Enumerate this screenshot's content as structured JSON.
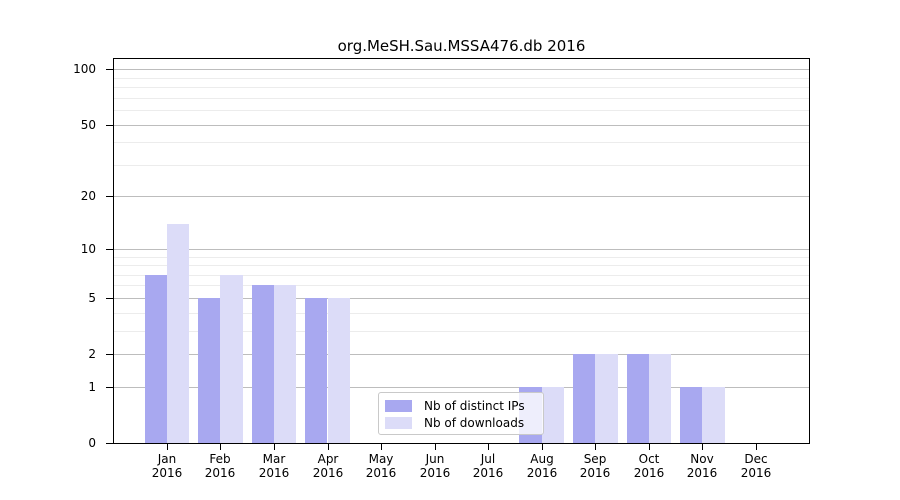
{
  "chart_data": {
    "type": "bar",
    "title": "org.MeSH.Sau.MSSA476.db 2016",
    "xlabel": "",
    "ylabel": "",
    "scale": "log1p",
    "grid": true,
    "ylim": [
      0,
      113
    ],
    "y_ticks": [
      0,
      1,
      2,
      5,
      10,
      20,
      50,
      100
    ],
    "y_minor_ticks": [
      3,
      4,
      6,
      7,
      8,
      9,
      30,
      40,
      60,
      70,
      80,
      90
    ],
    "categories": [
      {
        "label": "Jan",
        "sublabel": "2016"
      },
      {
        "label": "Feb",
        "sublabel": "2016"
      },
      {
        "label": "Mar",
        "sublabel": "2016"
      },
      {
        "label": "Apr",
        "sublabel": "2016"
      },
      {
        "label": "May",
        "sublabel": "2016"
      },
      {
        "label": "Jun",
        "sublabel": "2016"
      },
      {
        "label": "Jul",
        "sublabel": "2016"
      },
      {
        "label": "Aug",
        "sublabel": "2016"
      },
      {
        "label": "Sep",
        "sublabel": "2016"
      },
      {
        "label": "Oct",
        "sublabel": "2016"
      },
      {
        "label": "Nov",
        "sublabel": "2016"
      },
      {
        "label": "Dec",
        "sublabel": "2016"
      }
    ],
    "series": [
      {
        "name": "Nb of distinct IPs",
        "color": "#a8a8f0",
        "values": [
          7,
          5,
          6,
          5,
          0,
          0,
          0,
          1,
          2,
          2,
          1,
          0
        ]
      },
      {
        "name": "Nb of downloads",
        "color": "#dcdcf8",
        "values": [
          14,
          7,
          6,
          5,
          0,
          0,
          0,
          1,
          2,
          2,
          1,
          0
        ]
      }
    ],
    "legend_location": "bottom-center"
  }
}
